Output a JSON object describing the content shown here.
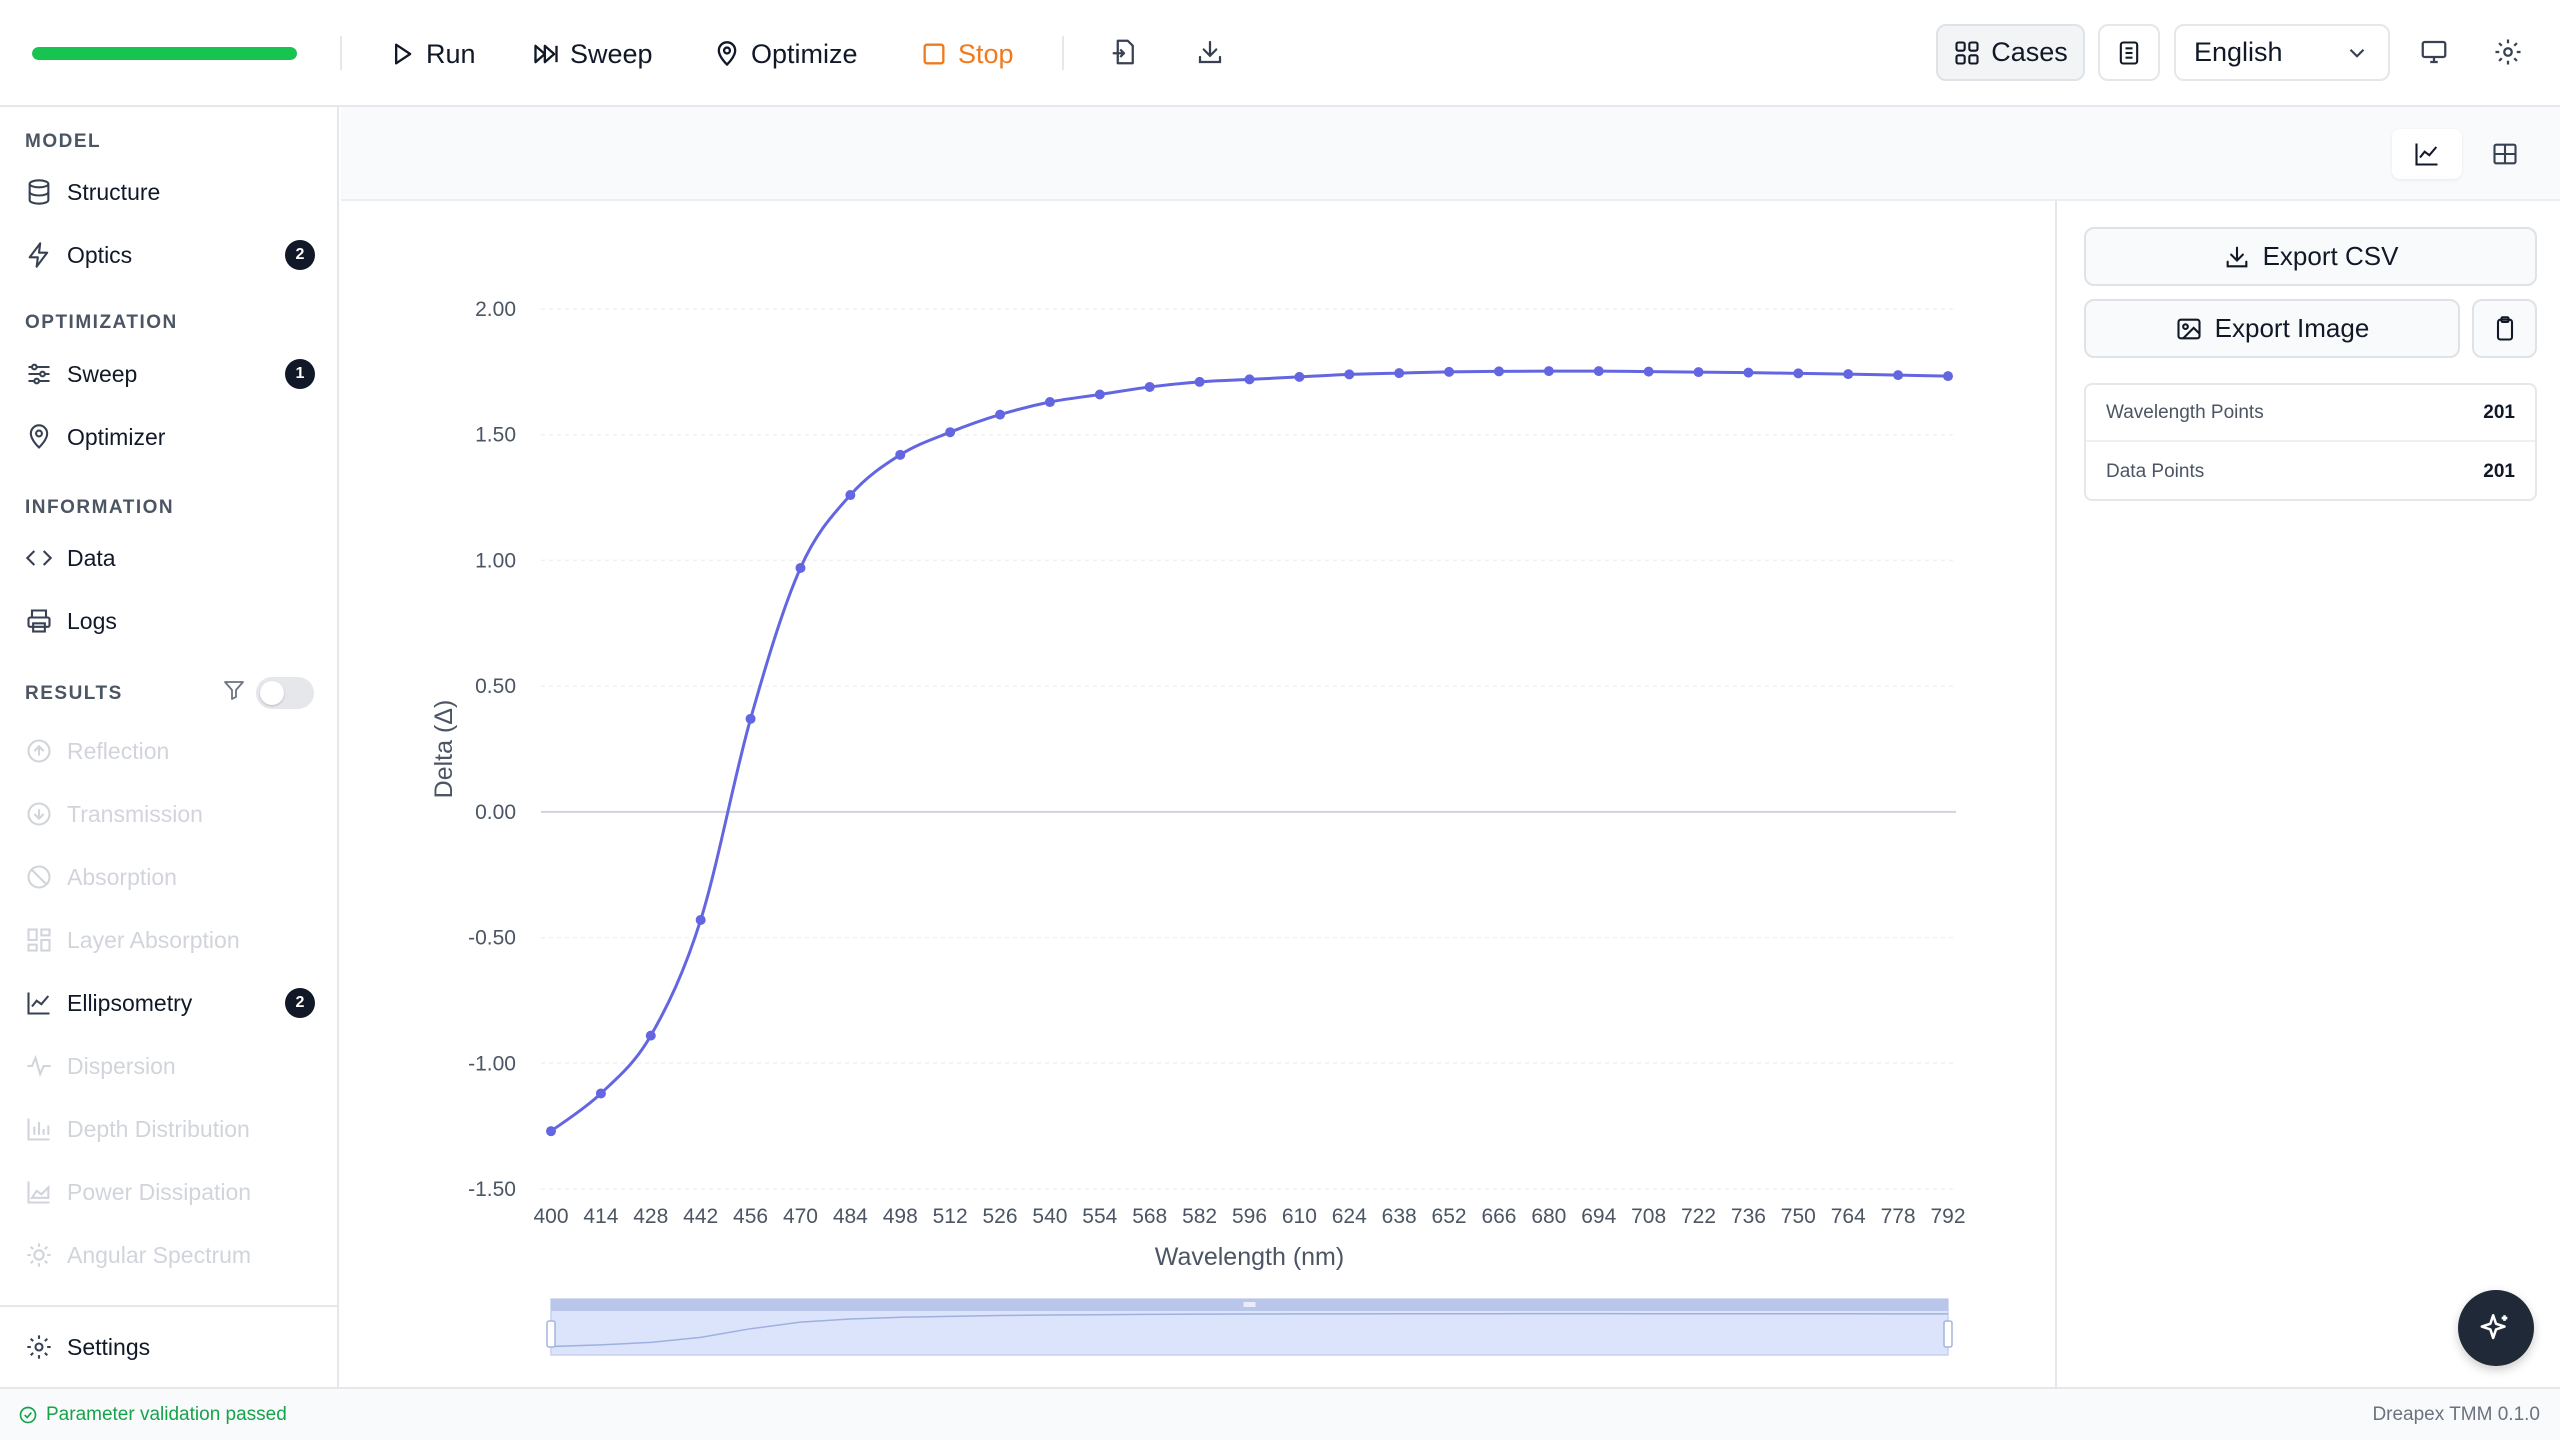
{
  "toolbar": {
    "progress": 1.0,
    "run_label": "Run",
    "sweep_label": "Sweep",
    "optimize_label": "Optimize",
    "stop_label": "Stop",
    "cases_label": "Cases",
    "language": "English",
    "stop_color": "#f07a1d",
    "progress_color": "#17c44f",
    "icons": {
      "run": "play-icon",
      "sweep": "skip-forward-icon",
      "optimize": "map-pin-icon",
      "stop": "square-icon",
      "import": "file-import-icon",
      "download": "download-icon",
      "cases": "grid-icon",
      "notes": "notebook-icon",
      "monitor": "monitor-icon",
      "settings": "gear-icon"
    }
  },
  "sidebar": {
    "sections": {
      "model": "MODEL",
      "optimization": "OPTIMIZATION",
      "information": "INFORMATION",
      "results": "RESULTS"
    },
    "items": {
      "structure": {
        "label": "Structure",
        "icon": "database-icon"
      },
      "optics": {
        "label": "Optics",
        "badge": "2",
        "icon": "bolt-icon"
      },
      "sweep": {
        "label": "Sweep",
        "badge": "1",
        "icon": "sliders-icon"
      },
      "optimizer": {
        "label": "Optimizer",
        "icon": "map-pin-icon"
      },
      "data": {
        "label": "Data",
        "icon": "code-icon"
      },
      "logs": {
        "label": "Logs",
        "icon": "printer-icon"
      },
      "reflection": {
        "label": "Reflection",
        "icon": "arrow-up-circle-icon"
      },
      "transmission": {
        "label": "Transmission",
        "icon": "arrow-down-circle-icon"
      },
      "absorption": {
        "label": "Absorption",
        "icon": "ban-icon"
      },
      "layer_absorption": {
        "label": "Layer Absorption",
        "icon": "layout-icon"
      },
      "ellipsometry": {
        "label": "Ellipsometry",
        "badge": "2",
        "icon": "line-chart-icon"
      },
      "dispersion": {
        "label": "Dispersion",
        "icon": "activity-icon"
      },
      "depth_distribution": {
        "label": "Depth Distribution",
        "icon": "bar-chart-icon"
      },
      "power_dissipation": {
        "label": "Power Dissipation",
        "icon": "area-chart-icon"
      },
      "angular_spectrum": {
        "label": "Angular Spectrum",
        "icon": "sun-icon"
      },
      "settings": {
        "label": "Settings",
        "icon": "gear-icon"
      }
    },
    "results_filter_on": false
  },
  "panel": {
    "export_csv": "Export CSV",
    "export_image": "Export Image",
    "stats": [
      {
        "label": "Wavelength Points",
        "value": "201"
      },
      {
        "label": "Data Points",
        "value": "201"
      }
    ]
  },
  "chart_data": {
    "type": "line",
    "xlabel": "Wavelength (nm)",
    "ylabel": "Delta (Δ)",
    "ylim": [
      -1.5,
      2.0
    ],
    "yticks": [
      "2.00",
      "1.50",
      "1.00",
      "0.50",
      "0.00",
      "-0.50",
      "-1.00",
      "-1.50"
    ],
    "grid": true,
    "line_color": "#6366e0",
    "x": [
      400,
      414,
      428,
      442,
      456,
      470,
      484,
      498,
      512,
      526,
      540,
      554,
      568,
      582,
      596,
      610,
      624,
      638,
      652,
      666,
      680,
      694,
      708,
      722,
      736,
      750,
      764,
      778,
      792
    ],
    "series": [
      {
        "values": [
          -1.27,
          -1.12,
          -0.89,
          -0.43,
          0.37,
          0.97,
          1.26,
          1.42,
          1.51,
          1.58,
          1.63,
          1.66,
          1.69,
          1.71,
          1.72,
          1.73,
          1.74,
          1.745,
          1.75,
          1.752,
          1.753,
          1.753,
          1.751,
          1.749,
          1.747,
          1.744,
          1.741,
          1.737,
          1.733
        ]
      }
    ]
  },
  "status": {
    "message": "Parameter validation passed",
    "version": "Dreapex TMM 0.1.0"
  }
}
